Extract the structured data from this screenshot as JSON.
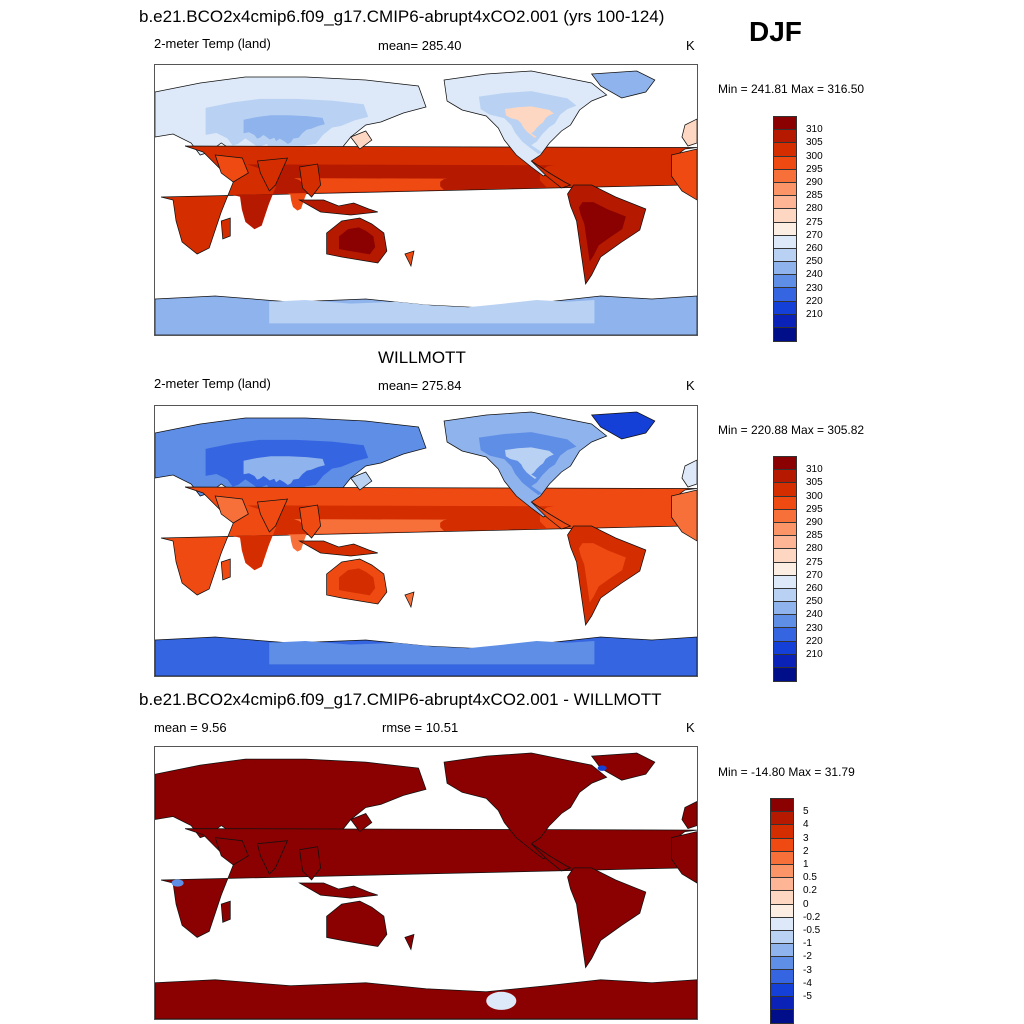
{
  "season_label": "DJF",
  "panels": [
    {
      "title": "b.e21.BCO2x4cmip6.f09_g17.CMIP6-abrupt4xCO2.001 (yrs 100-124)",
      "left_label": "2-meter Temp (land)",
      "center_label": "mean= 285.40",
      "units": "K",
      "minmax": "Min = 241.81 Max = 316.50",
      "scheme": "abs",
      "data": {
        "variable": "2-meter Temp (land)",
        "mean": 285.4,
        "min": 241.81,
        "max": 316.5,
        "units": "K"
      }
    },
    {
      "title": "WILLMOTT",
      "left_label": "2-meter Temp (land)",
      "center_label": "mean= 275.84",
      "units": "K",
      "minmax": "Min = 220.88 Max = 305.82",
      "scheme": "obs",
      "data": {
        "variable": "2-meter Temp (land)",
        "mean": 275.84,
        "min": 220.88,
        "max": 305.82,
        "units": "K"
      }
    },
    {
      "title": "b.e21.BCO2x4cmip6.f09_g17.CMIP6-abrupt4xCO2.001 - WILLMOTT",
      "left_label": "mean =   9.56",
      "center_label": "rmse =  10.51",
      "units": "K",
      "minmax": "Min = -14.80 Max =  31.79",
      "scheme": "diff",
      "data": {
        "mean": 9.56,
        "rmse": 10.51,
        "min": -14.8,
        "max": 31.79,
        "units": "K"
      }
    }
  ],
  "colorbars": {
    "absolute": {
      "labels": [
        "310",
        "305",
        "300",
        "295",
        "290",
        "285",
        "280",
        "275",
        "270",
        "260",
        "250",
        "240",
        "230",
        "220",
        "210"
      ],
      "colors": [
        "#8b0000",
        "#b51a00",
        "#d42d00",
        "#ee4a12",
        "#f7703a",
        "#fb9466",
        "#fdb595",
        "#fdd7c1",
        "#fdeee3",
        "#dde9f8",
        "#b9d2f3",
        "#8fb3ec",
        "#5f8ee6",
        "#3565e0",
        "#1440d8",
        "#0a22b8",
        "#000e8a"
      ]
    },
    "difference": {
      "labels": [
        "5",
        "4",
        "3",
        "2",
        "1",
        "0.5",
        "0.2",
        "0",
        "-0.2",
        "-0.5",
        "-1",
        "-2",
        "-3",
        "-4",
        "-5"
      ],
      "colors": [
        "#8b0000",
        "#b51a00",
        "#d42d00",
        "#ee4a12",
        "#f7703a",
        "#fb9466",
        "#fdb595",
        "#fdd7c1",
        "#fdeee3",
        "#dde9f8",
        "#b9d2f3",
        "#8fb3ec",
        "#5f8ee6",
        "#3565e0",
        "#1440d8",
        "#0a22b8",
        "#000e8a"
      ]
    }
  }
}
